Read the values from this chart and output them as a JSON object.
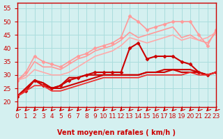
{
  "title": "",
  "xlabel": "Vent moyen/en rafales ( km/h )",
  "ylabel": "",
  "xlim": [
    0,
    23
  ],
  "ylim": [
    18,
    57
  ],
  "yticks": [
    20,
    25,
    30,
    35,
    40,
    45,
    50,
    55
  ],
  "xticks": [
    0,
    1,
    2,
    3,
    4,
    5,
    6,
    7,
    8,
    9,
    10,
    11,
    12,
    13,
    14,
    15,
    16,
    17,
    18,
    19,
    20,
    21,
    22,
    23
  ],
  "background_color": "#d4f0f0",
  "grid_color": "#aadddd",
  "series": [
    {
      "x": [
        0,
        1,
        2,
        3,
        4,
        5,
        6,
        7,
        8,
        9,
        10,
        11,
        12,
        13,
        14,
        15,
        16,
        17,
        18,
        19,
        20,
        21,
        22,
        23
      ],
      "y": [
        28,
        31,
        37,
        35,
        34,
        33,
        35,
        37,
        38,
        40,
        41,
        42,
        44,
        52,
        50,
        47,
        48,
        49,
        50,
        50,
        50,
        45,
        41,
        47
      ],
      "color": "#ff9999",
      "lw": 1.2,
      "marker": "D",
      "ms": 2.5
    },
    {
      "x": [
        0,
        1,
        2,
        3,
        4,
        5,
        6,
        7,
        8,
        9,
        10,
        11,
        12,
        13,
        14,
        15,
        16,
        17,
        18,
        19,
        20,
        21,
        22,
        23
      ],
      "y": [
        28,
        30,
        35,
        33,
        33,
        32,
        34,
        36,
        37,
        39,
        40,
        41,
        43,
        46,
        44,
        45,
        46,
        47,
        48,
        44,
        45,
        43,
        42,
        46
      ],
      "color": "#ff9999",
      "lw": 1.2,
      "marker": null,
      "ms": 0
    },
    {
      "x": [
        0,
        1,
        2,
        3,
        4,
        5,
        6,
        7,
        8,
        9,
        10,
        11,
        12,
        13,
        14,
        15,
        16,
        17,
        18,
        19,
        20,
        21,
        22,
        23
      ],
      "y": [
        28,
        29,
        32,
        31,
        30,
        30,
        31,
        33,
        35,
        37,
        38,
        39,
        41,
        44,
        43,
        42,
        43,
        44,
        45,
        43,
        44,
        43,
        44,
        46
      ],
      "color": "#ffaaaa",
      "lw": 1.2,
      "marker": null,
      "ms": 0
    },
    {
      "x": [
        0,
        1,
        2,
        3,
        4,
        5,
        6,
        7,
        8,
        9,
        10,
        11,
        12,
        13,
        14,
        15,
        16,
        17,
        18,
        19,
        20,
        21,
        22,
        23
      ],
      "y": [
        22,
        24,
        28,
        26,
        25,
        26,
        28,
        29,
        30,
        31,
        31,
        31,
        31,
        40,
        42,
        36,
        37,
        37,
        37,
        35,
        34,
        31,
        30,
        31
      ],
      "color": "#cc0000",
      "lw": 1.5,
      "marker": "D",
      "ms": 2.5
    },
    {
      "x": [
        0,
        1,
        2,
        3,
        4,
        5,
        6,
        7,
        8,
        9,
        10,
        11,
        12,
        13,
        14,
        15,
        16,
        17,
        18,
        19,
        20,
        21,
        22,
        23
      ],
      "y": [
        22,
        25,
        28,
        27,
        25,
        26,
        29,
        29,
        30,
        30,
        30,
        30,
        30,
        30,
        30,
        31,
        31,
        32,
        32,
        32,
        32,
        31,
        30,
        31
      ],
      "color": "#cc0000",
      "lw": 1.5,
      "marker": null,
      "ms": 0
    },
    {
      "x": [
        0,
        1,
        2,
        3,
        4,
        5,
        6,
        7,
        8,
        9,
        10,
        11,
        12,
        13,
        14,
        15,
        16,
        17,
        18,
        19,
        20,
        21,
        22,
        23
      ],
      "y": [
        22,
        25,
        28,
        27,
        25,
        25,
        26,
        27,
        28,
        29,
        30,
        30,
        30,
        30,
        30,
        31,
        31,
        31,
        32,
        31,
        31,
        31,
        30,
        31
      ],
      "color": "#cc0000",
      "lw": 1.5,
      "marker": null,
      "ms": 0
    },
    {
      "x": [
        0,
        1,
        2,
        3,
        4,
        5,
        6,
        7,
        8,
        9,
        10,
        11,
        12,
        13,
        14,
        15,
        16,
        17,
        18,
        19,
        20,
        21,
        22,
        23
      ],
      "y": [
        22,
        24,
        26,
        26,
        24,
        24,
        25,
        26,
        27,
        28,
        29,
        29,
        29,
        29,
        29,
        30,
        30,
        30,
        30,
        30,
        31,
        30,
        30,
        31
      ],
      "color": "#ee3333",
      "lw": 1.3,
      "marker": null,
      "ms": 0
    }
  ],
  "arrow_color": "#cc0000",
  "tick_color": "#cc0000",
  "label_color": "#cc0000",
  "axis_label_fontsize": 7,
  "tick_fontsize": 6.5
}
